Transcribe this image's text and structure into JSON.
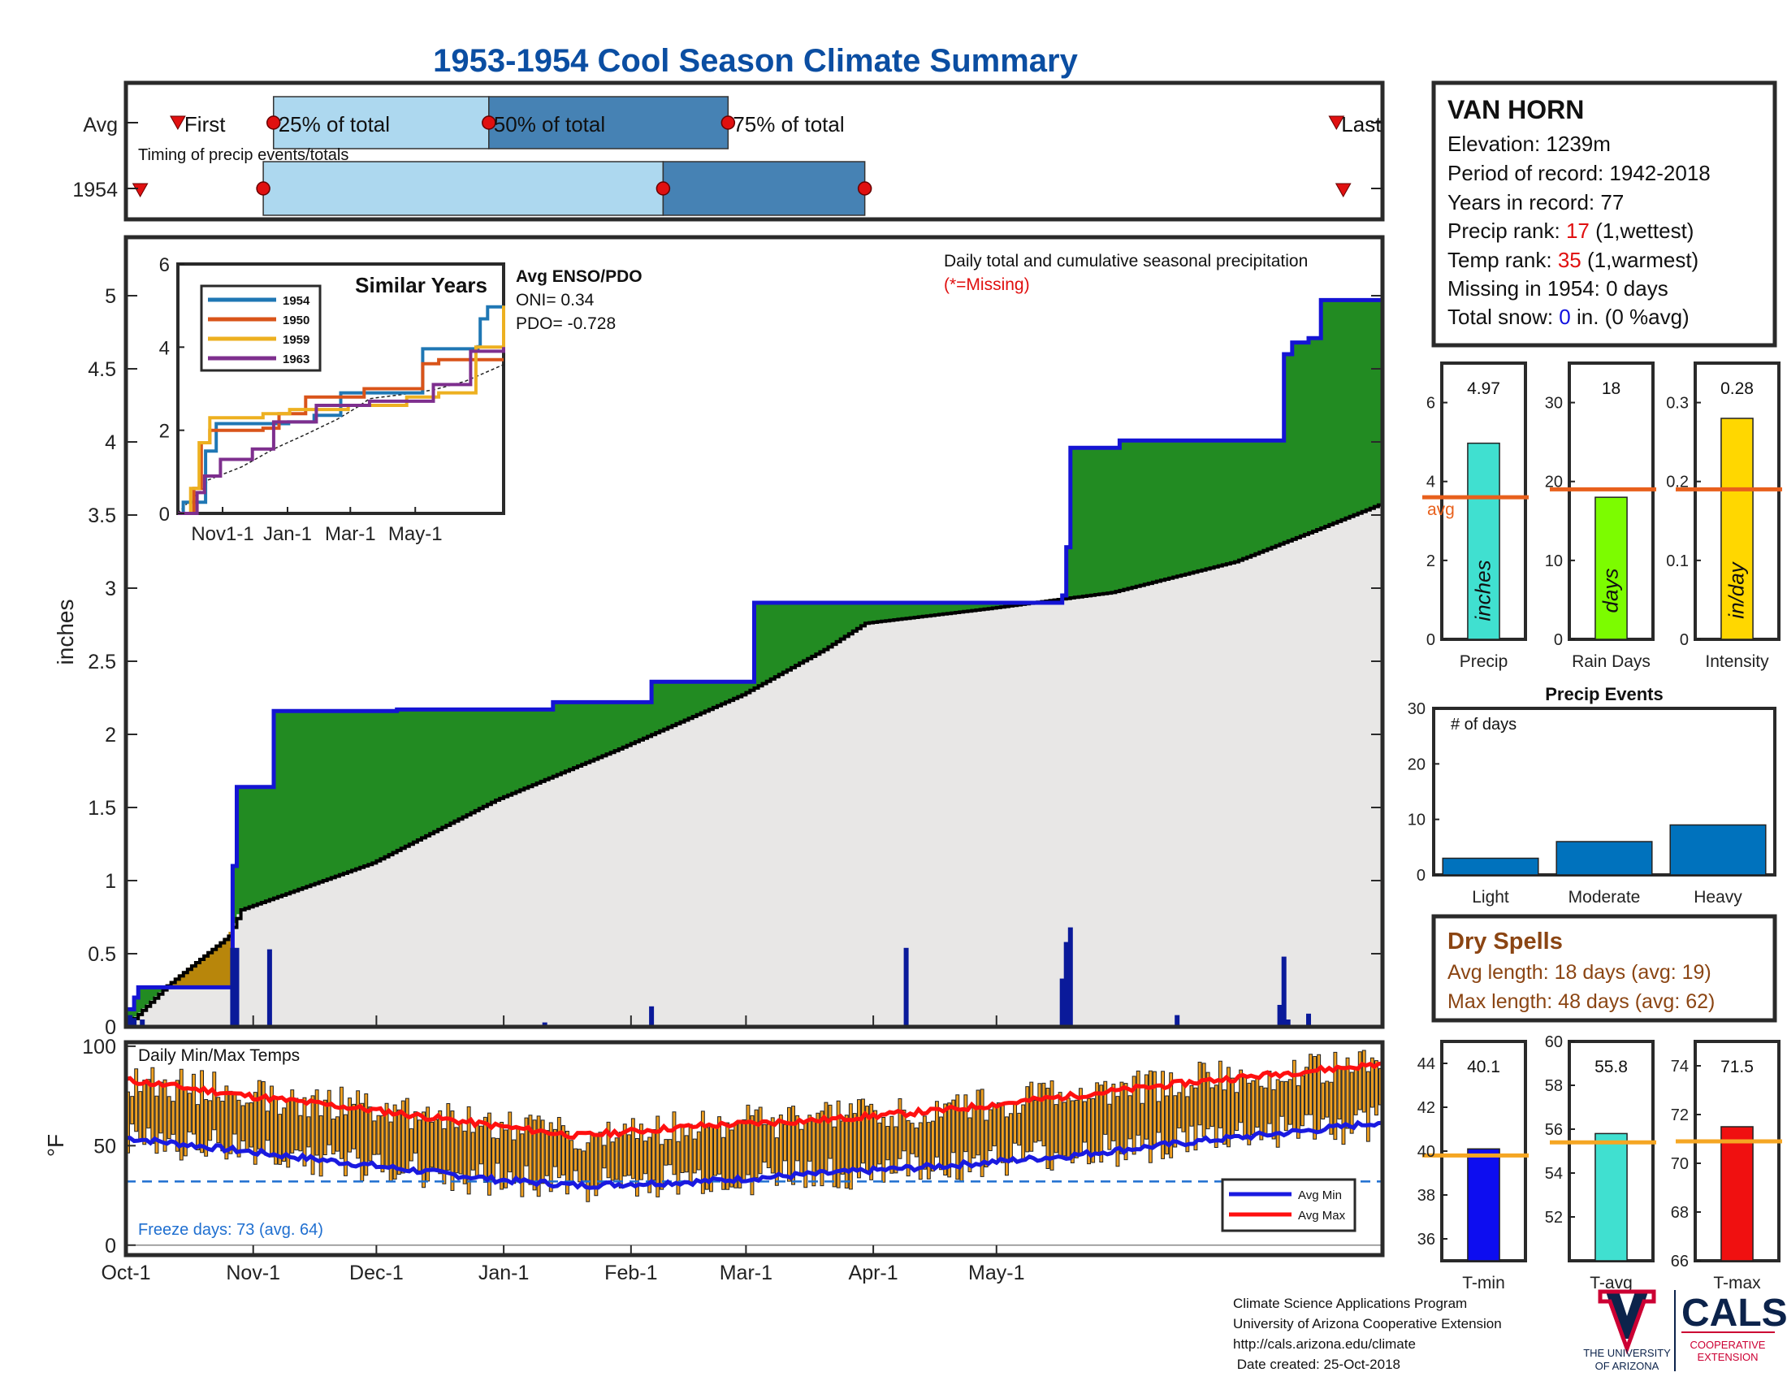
{
  "title": "1953-1954 Cool Season Climate Summary",
  "colors": {
    "title": "#0b4ea2",
    "cum_precip_line": "#1414d4",
    "excess": "#228b22",
    "deficit": "#b8860b",
    "avg_fill": "#e8e7e6",
    "daily_bar": "#0a1a9a",
    "temp_bar": "#f0a020",
    "avg_min": "#1a1ae0",
    "avg_max": "#ff1010",
    "freeze_line": "#1f6fd0",
    "timing_light": "#add8ef",
    "timing_dark": "#4682b4",
    "avg_marker": "#e8601c",
    "rank_red": "#e01010",
    "snow_blue": "#1010e0",
    "dry_brown": "#8b4513"
  },
  "timing": {
    "label": "Timing of precip events/totals",
    "rows": [
      "Avg",
      "1954"
    ],
    "first_label": "First",
    "last_label": "Last",
    "p25_label": "25% of total",
    "p50_label": "50% of total",
    "p75_label": "75% of total",
    "avg": {
      "first": 14,
      "p25": 42,
      "p50": 105,
      "p75": 175,
      "last": 353
    },
    "y1954": {
      "first": 3,
      "p25": 39,
      "p50": 156,
      "p75": 215,
      "last": 355
    }
  },
  "station": {
    "name": "VAN HORN",
    "elevation": "Elevation: 1239m",
    "period": "Period of record: 1942-2018",
    "years": "Years in record: 77",
    "precip_rank_label": "Precip rank: ",
    "precip_rank_value": "17",
    "precip_rank_suffix": " (1,wettest)",
    "temp_rank_label": "Temp rank: ",
    "temp_rank_value": "35",
    "temp_rank_suffix": " (1,warmest)",
    "missing": "Missing in 1954: 0 days",
    "snow_label": "Total snow: ",
    "snow_value": "0",
    "snow_suffix": " in. (0 %avg)"
  },
  "main_chart": {
    "ylabel": "inches",
    "caption": "Daily total and cumulative seasonal precipitation",
    "missing_note": "(*=Missing)",
    "enso_title": "Avg ENSO/PDO",
    "oni": "ONI= 0.34",
    "pdo": "PDO= -0.728"
  },
  "similar_years": {
    "title": "Similar Years",
    "legend": [
      "1954",
      "1950",
      "1959",
      "1963"
    ],
    "colors": [
      "#1f77b4",
      "#d9541a",
      "#edb020",
      "#7e2f8e"
    ],
    "yticks": [
      "0",
      "2",
      "4",
      "6"
    ],
    "xticks": [
      "Nov1-1",
      "Jan-1",
      "Mar-1",
      "May-1"
    ]
  },
  "temp_chart": {
    "title": "Daily Min/Max Temps",
    "ylabel": "°F",
    "freeze_days": "Freeze days: 73 (avg. 64)",
    "legend_min": "Avg Min",
    "legend_max": "Avg Max",
    "yticks": [
      "0",
      "50",
      "100"
    ]
  },
  "month_labels": [
    "Oct-1",
    "Nov-1",
    "Dec-1",
    "Jan-1",
    "Feb-1",
    "Mar-1",
    "Apr-1",
    "May-1"
  ],
  "precip_yticks": [
    "0",
    "0.5",
    "1",
    "1.5",
    "2",
    "2.5",
    "3",
    "3.5",
    "4",
    "4.5",
    "5"
  ],
  "bars_top": [
    {
      "label": "Precip",
      "value": "4.97",
      "unit": "inches",
      "yticks": [
        "0",
        "2",
        "4",
        "6"
      ],
      "avg_label": "avg"
    },
    {
      "label": "Rain Days",
      "value": "18",
      "unit": "days",
      "yticks": [
        "0",
        "10",
        "20",
        "30"
      ]
    },
    {
      "label": "Intensity",
      "value": "0.28",
      "unit": "in/day",
      "yticks": [
        "0",
        "0.1",
        "0.2",
        "0.3"
      ]
    }
  ],
  "precip_events": {
    "title": "Precip Events",
    "ylabel": "# of days",
    "yticks": [
      "0",
      "10",
      "20",
      "30"
    ],
    "categories": [
      "Light",
      "Moderate",
      "Heavy"
    ]
  },
  "dry_spells": {
    "title": "Dry Spells",
    "avg": "Avg length: 18 days (avg: 19)",
    "max": "Max length: 48 days (avg: 62)"
  },
  "bars_temp": [
    {
      "label": "T-min",
      "value": "40.1",
      "yticks": [
        "36",
        "38",
        "40",
        "42",
        "44"
      ]
    },
    {
      "label": "T-avg",
      "value": "55.8",
      "yticks": [
        "52",
        "54",
        "56",
        "58",
        "60"
      ]
    },
    {
      "label": "T-max",
      "value": "71.5",
      "yticks": [
        "66",
        "68",
        "70",
        "72",
        "74"
      ]
    }
  ],
  "footer": {
    "line1": "Climate Science Applications Program",
    "line2": "University of Arizona Cooperative Extension",
    "line3": "http://cals.arizona.edu/climate",
    "line4": " Date created: 25-Oct-2018",
    "ua1": "THE UNIVERSITY",
    "ua2": "OF ARIZONA",
    "cals": "CALS",
    "coop1": "COOPERATIVE",
    "coop2": "EXTENSION"
  },
  "chart_data": [
    {
      "type": "area",
      "title": "Daily total and cumulative seasonal precipitation",
      "ylabel": "inches",
      "ylim": [
        0,
        5.4
      ],
      "x_unit": "day of season from Oct-1",
      "cumulative_1954": [
        [
          0,
          0.12
        ],
        [
          2,
          0.2
        ],
        [
          3,
          0.27
        ],
        [
          26,
          0.27
        ],
        [
          26,
          1.1
        ],
        [
          27,
          1.64
        ],
        [
          36,
          1.64
        ],
        [
          36,
          2.16
        ],
        [
          66,
          2.17
        ],
        [
          104,
          2.18
        ],
        [
          104,
          2.22
        ],
        [
          128,
          2.22
        ],
        [
          128,
          2.36
        ],
        [
          153,
          2.36
        ],
        [
          153,
          2.9
        ],
        [
          228,
          2.9
        ],
        [
          228,
          2.95
        ],
        [
          229,
          3.28
        ],
        [
          230,
          3.96
        ],
        [
          242,
          4.01
        ],
        [
          282,
          4.01
        ],
        [
          282,
          4.6
        ],
        [
          284,
          4.68
        ],
        [
          288,
          4.71
        ],
        [
          291,
          4.97
        ],
        [
          306,
          4.97
        ]
      ],
      "cumulative_avg": [
        [
          0,
          0
        ],
        [
          10,
          0.28
        ],
        [
          25,
          0.62
        ],
        [
          28,
          0.8
        ],
        [
          60,
          1.12
        ],
        [
          90,
          1.55
        ],
        [
          120,
          1.9
        ],
        [
          150,
          2.27
        ],
        [
          170,
          2.58
        ],
        [
          180,
          2.76
        ],
        [
          210,
          2.86
        ],
        [
          240,
          2.97
        ],
        [
          270,
          3.18
        ],
        [
          290,
          3.4
        ],
        [
          306,
          3.58
        ]
      ],
      "daily_precip": [
        [
          1,
          0.08
        ],
        [
          2,
          0.06
        ],
        [
          4,
          0.05
        ],
        [
          26,
          0.54
        ],
        [
          27,
          0.54
        ],
        [
          35,
          0.53
        ],
        [
          102,
          0.03
        ],
        [
          128,
          0.14
        ],
        [
          190,
          0.54
        ],
        [
          228,
          0.33
        ],
        [
          229,
          0.58
        ],
        [
          230,
          0.68
        ],
        [
          256,
          0.08
        ],
        [
          281,
          0.15
        ],
        [
          282,
          0.48
        ],
        [
          283,
          0.05
        ],
        [
          288,
          0.09
        ]
      ]
    },
    {
      "type": "line",
      "title": "Similar Years",
      "ylim": [
        0,
        6
      ],
      "series": [
        {
          "name": "1954",
          "values": [
            [
              0,
              0
            ],
            [
              5,
              0.27
            ],
            [
              26,
              1.5
            ],
            [
              36,
              2.16
            ],
            [
              104,
              2.2
            ],
            [
              128,
              2.36
            ],
            [
              153,
              2.9
            ],
            [
              228,
              2.9
            ],
            [
              230,
              3.96
            ],
            [
              282,
              4.01
            ],
            [
              284,
              4.68
            ],
            [
              291,
              4.97
            ],
            [
              306,
              4.97
            ]
          ]
        },
        {
          "name": "1950",
          "values": [
            [
              0,
              0
            ],
            [
              15,
              0.6
            ],
            [
              22,
              1.7
            ],
            [
              30,
              2.0
            ],
            [
              80,
              2.05
            ],
            [
              95,
              2.4
            ],
            [
              120,
              2.8
            ],
            [
              175,
              3.0
            ],
            [
              230,
              3.6
            ],
            [
              245,
              3.7
            ],
            [
              306,
              3.7
            ]
          ]
        },
        {
          "name": "1959",
          "values": [
            [
              0,
              0
            ],
            [
              12,
              0.6
            ],
            [
              20,
              1.7
            ],
            [
              30,
              2.3
            ],
            [
              80,
              2.4
            ],
            [
              105,
              2.5
            ],
            [
              160,
              2.6
            ],
            [
              215,
              2.8
            ],
            [
              245,
              2.9
            ],
            [
              270,
              2.9
            ],
            [
              280,
              4.0
            ],
            [
              306,
              5.0
            ]
          ]
        },
        {
          "name": "1963",
          "values": [
            [
              0,
              0
            ],
            [
              18,
              0.5
            ],
            [
              25,
              0.9
            ],
            [
              40,
              1.3
            ],
            [
              70,
              1.55
            ],
            [
              90,
              2.2
            ],
            [
              130,
              2.6
            ],
            [
              180,
              2.7
            ],
            [
              240,
              3.1
            ],
            [
              275,
              3.9
            ],
            [
              306,
              4.0
            ]
          ]
        }
      ]
    },
    {
      "type": "line",
      "title": "Daily Min/Max Temps",
      "ylabel": "°F",
      "ylim": [
        -5,
        102
      ],
      "freeze_line": 32,
      "avg_max": [
        [
          0,
          83
        ],
        [
          30,
          75
        ],
        [
          60,
          68
        ],
        [
          90,
          60
        ],
        [
          110,
          55
        ],
        [
          140,
          60
        ],
        [
          170,
          63
        ],
        [
          200,
          68
        ],
        [
          230,
          75
        ],
        [
          260,
          82
        ],
        [
          290,
          88
        ],
        [
          306,
          91
        ]
      ],
      "avg_min": [
        [
          0,
          54
        ],
        [
          30,
          47
        ],
        [
          60,
          40
        ],
        [
          90,
          33
        ],
        [
          110,
          30
        ],
        [
          140,
          32
        ],
        [
          170,
          36
        ],
        [
          200,
          40
        ],
        [
          230,
          45
        ],
        [
          260,
          52
        ],
        [
          290,
          58
        ],
        [
          306,
          62
        ]
      ]
    },
    {
      "type": "bar",
      "title": "Precip",
      "categories": [
        "Precip"
      ],
      "values": [
        4.97
      ],
      "avg": 3.6,
      "ylim": [
        0,
        7
      ]
    },
    {
      "type": "bar",
      "title": "Rain Days",
      "categories": [
        "Rain Days"
      ],
      "values": [
        18
      ],
      "avg": 19,
      "ylim": [
        0,
        35
      ]
    },
    {
      "type": "bar",
      "title": "Intensity",
      "categories": [
        "Intensity"
      ],
      "values": [
        0.28
      ],
      "avg": 0.19,
      "ylim": [
        0,
        0.35
      ]
    },
    {
      "type": "bar",
      "title": "Precip Events",
      "ylabel": "# of days",
      "categories": [
        "Light",
        "Moderate",
        "Heavy"
      ],
      "values": [
        3,
        6,
        9
      ],
      "ylim": [
        0,
        30
      ]
    },
    {
      "type": "bar",
      "title": "T-min",
      "categories": [
        "T-min"
      ],
      "values": [
        40.1
      ],
      "avg": 39.8,
      "ylim": [
        35,
        45
      ]
    },
    {
      "type": "bar",
      "title": "T-avg",
      "categories": [
        "T-avg"
      ],
      "values": [
        55.8
      ],
      "avg": 55.4,
      "ylim": [
        50,
        60
      ]
    },
    {
      "type": "bar",
      "title": "T-max",
      "categories": [
        "T-max"
      ],
      "values": [
        71.5
      ],
      "avg": 70.9,
      "ylim": [
        66,
        75
      ]
    }
  ]
}
